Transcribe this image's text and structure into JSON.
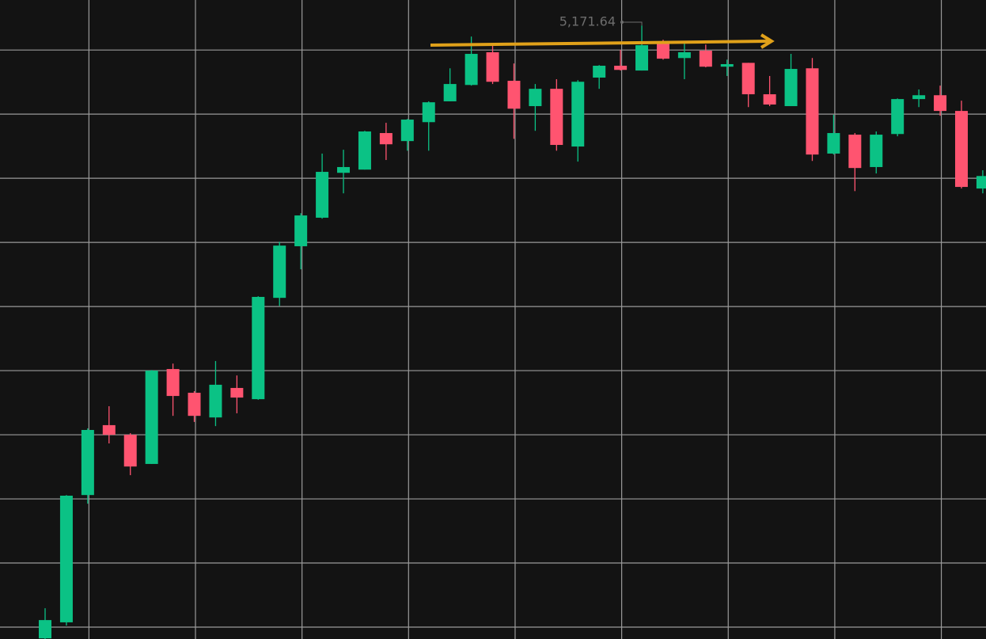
{
  "chart_data": {
    "type": "candlestick",
    "annotation": "5,171.64",
    "categories": [
      null,
      null,
      null,
      null,
      null,
      null,
      null,
      null,
      null,
      null,
      null,
      null,
      null,
      null,
      null,
      null,
      null,
      null,
      null,
      null,
      null,
      null,
      null,
      null,
      null,
      null,
      null,
      null,
      null,
      null,
      null,
      null,
      null,
      null,
      null,
      null,
      null,
      null,
      null,
      null,
      null,
      null,
      null,
      null,
      null
    ],
    "open": [
      4980.5,
      4985.5,
      5025.2,
      5047.0,
      5044.0,
      5034.9,
      5064.5,
      5057.1,
      5049.4,
      5058.6,
      5055.1,
      5086.7,
      5102.8,
      5111.7,
      5125.7,
      5126.7,
      5138.1,
      5135.6,
      5141.5,
      5148.0,
      5153.1,
      5163.3,
      5154.4,
      5146.5,
      5151.9,
      5133.9,
      5155.4,
      5159.1,
      5157.6,
      5166.0,
      5161.5,
      5163.8,
      5158.8,
      5160.0,
      5150.2,
      5146.5,
      5158.3,
      5131.7,
      5137.6,
      5127.5,
      5137.8,
      5148.7,
      5149.9,
      5145.0,
      5120.8
    ],
    "high": [
      4989.9,
      5025.2,
      5046.0,
      5052.9,
      5044.5,
      5064.2,
      5066.2,
      5057.6,
      5067.0,
      5062.5,
      5087.2,
      5104.2,
      5113.1,
      5131.7,
      5132.9,
      5138.8,
      5141.3,
      5142.5,
      5148.0,
      5158.3,
      5168.2,
      5166.0,
      5159.8,
      5153.4,
      5154.9,
      5154.6,
      5159.3,
      5164.0,
      5171.64,
      5167.2,
      5166.0,
      5165.7,
      5161.0,
      5160.0,
      5155.9,
      5162.8,
      5161.5,
      5143.8,
      5138.1,
      5138.6,
      5148.9,
      5151.7,
      5152.9,
      5148.2,
      5126.5
    ],
    "low": [
      4980.3,
      4984.5,
      5022.5,
      5041.3,
      5031.4,
      5034.9,
      5049.9,
      5048.0,
      5046.7,
      5050.7,
      5054.9,
      5084.2,
      5095.6,
      5111.4,
      5119.3,
      5126.7,
      5129.7,
      5132.6,
      5132.6,
      5148.0,
      5152.9,
      5153.4,
      5136.3,
      5138.8,
      5132.6,
      5129.2,
      5151.9,
      5157.6,
      5157.6,
      5161.0,
      5154.9,
      5158.6,
      5155.9,
      5146.2,
      5146.5,
      5146.5,
      5129.4,
      5131.4,
      5120.0,
      5125.5,
      5137.1,
      5146.2,
      5143.5,
      5120.8,
      5119.3
    ],
    "close": [
      4986.2,
      5025.0,
      5045.5,
      5044.0,
      5034.1,
      5064.0,
      5056.1,
      5049.9,
      5059.6,
      5055.6,
      5087.0,
      5103.0,
      5112.4,
      5126.0,
      5127.5,
      5138.6,
      5134.6,
      5142.3,
      5147.7,
      5153.4,
      5162.8,
      5154.1,
      5145.7,
      5151.9,
      5134.4,
      5154.1,
      5159.1,
      5157.8,
      5165.5,
      5161.3,
      5163.3,
      5158.8,
      5159.6,
      5150.2,
      5147.0,
      5158.1,
      5131.4,
      5138.1,
      5127.2,
      5137.6,
      5148.7,
      5149.9,
      5145.0,
      5121.3,
      5124.7
    ],
    "up_color": "#0bc285",
    "down_color": "#ff5470",
    "ylim": [
      4980.3,
      5179.6
    ],
    "yticks": [
      5164,
      5144,
      5124,
      5104,
      5084,
      5064,
      5044,
      5024,
      5004,
      4984
    ],
    "grid": true
  }
}
